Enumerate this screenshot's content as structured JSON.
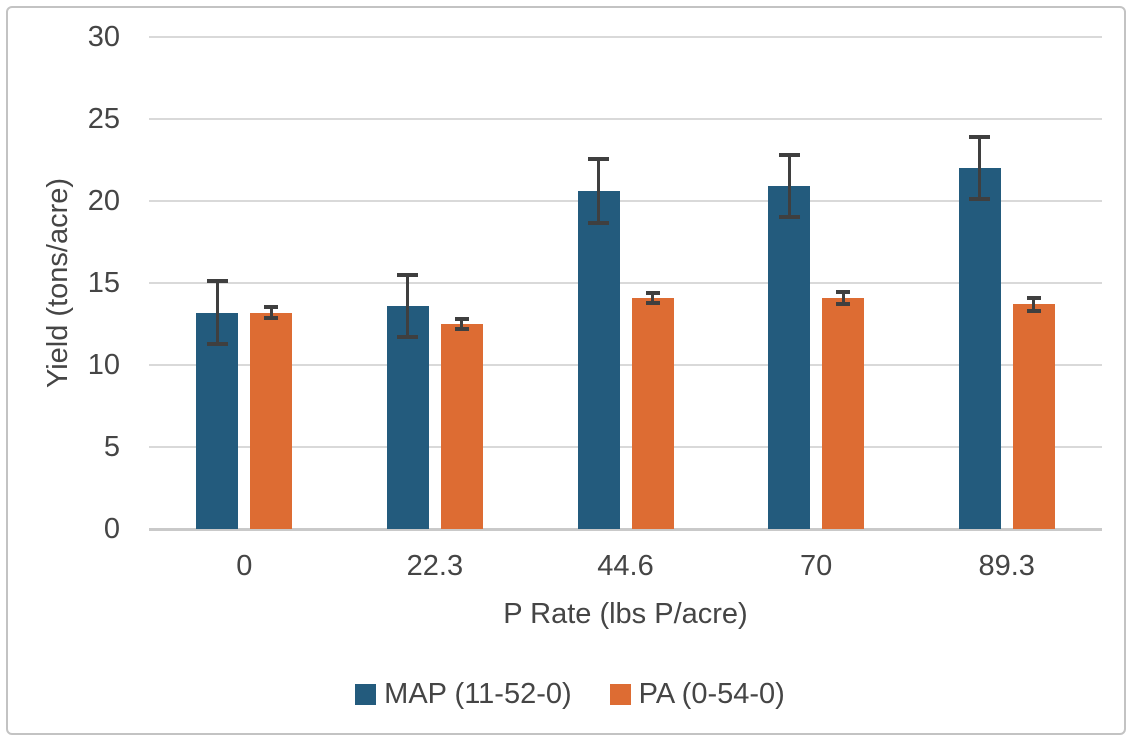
{
  "chart_data": {
    "type": "bar",
    "title": "",
    "xlabel": "P Rate (lbs P/acre)",
    "ylabel": "Yield (tons/acre)",
    "categories": [
      "0",
      "22.3",
      "44.6",
      "70",
      "89.3"
    ],
    "series": [
      {
        "name": "MAP (11-52-0)",
        "color": "#235b7d",
        "values": [
          13.2,
          13.6,
          20.6,
          20.9,
          22.0
        ],
        "errors": [
          1.9,
          1.9,
          1.95,
          1.9,
          1.9
        ]
      },
      {
        "name": "PA (0-54-0)",
        "color": "#dd6c33",
        "values": [
          13.2,
          12.5,
          14.1,
          14.1,
          13.7
        ],
        "errors": [
          0.35,
          0.3,
          0.3,
          0.35,
          0.4
        ]
      }
    ],
    "ylim": [
      0,
      30
    ],
    "ytick_step": 5,
    "grid": true,
    "legend_position": "bottom"
  },
  "colors": {
    "gridline": "#d9d9d9",
    "axis_line": "#c9c9c9",
    "text": "#454545",
    "error_bar": "#3f3f3f",
    "frame_border": "#c3c3c3",
    "background": "#ffffff"
  }
}
